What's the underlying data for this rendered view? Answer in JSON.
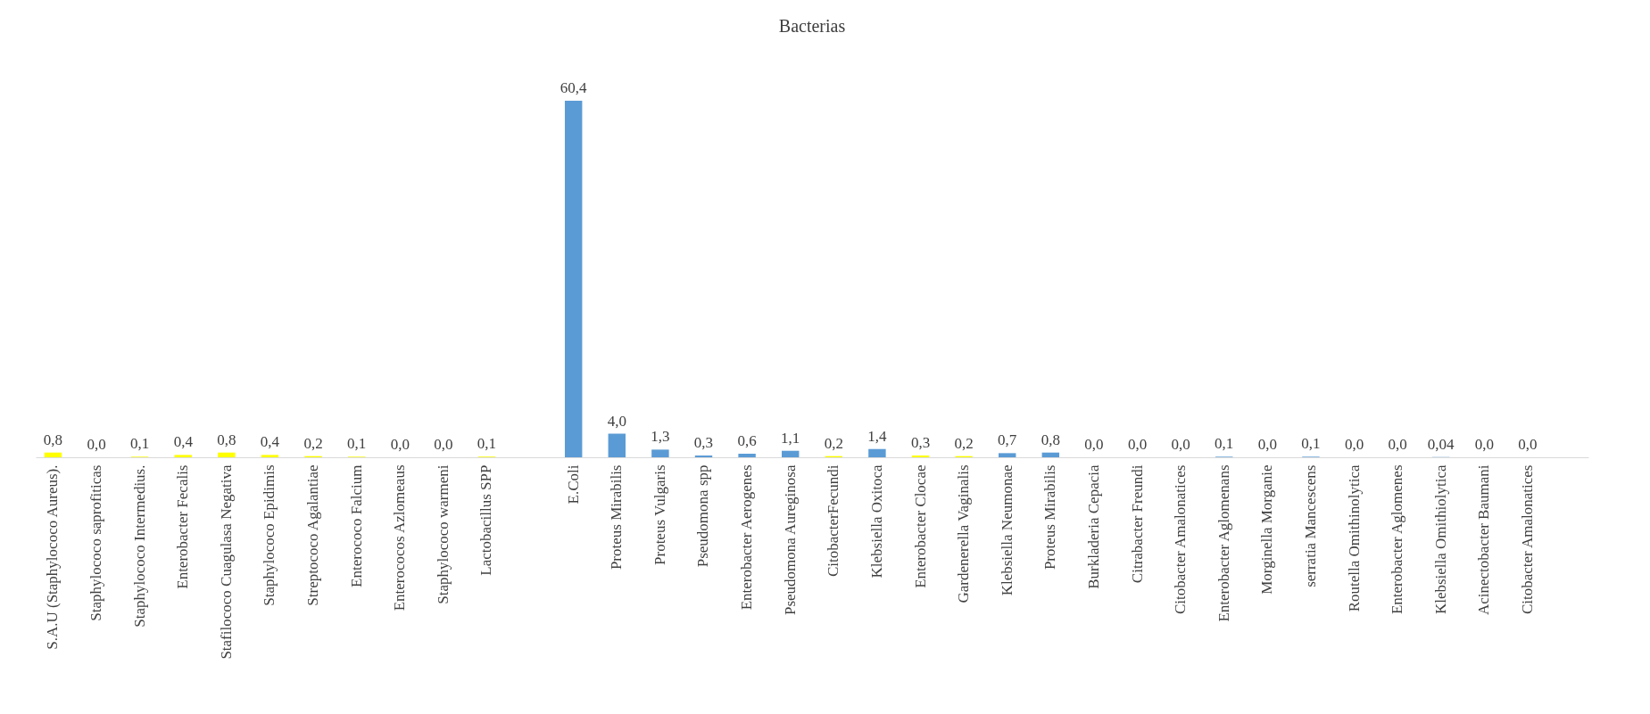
{
  "chart_data": {
    "type": "bar",
    "title": "Bacterias",
    "categories": [
      "S.A.U (Staphylococo Aureus).",
      "Staphylococo saprofiticas",
      "Staphylococo Intermedius.",
      "Enterobacter Fecalis",
      "Stafilococo Cuagulasa Negativa",
      "Staphylococo Epidimis",
      "Streptococo Agalantiae",
      "Enterococo Falcium",
      "Enterococos Azlomeaus",
      "Staphylococo warmeni",
      "Lactobacillus SPP",
      null,
      "E.Coli",
      "Proteus Mirabilis",
      "Proteus Vulgaris",
      "Pseudomona spp",
      "Enterobacter Aerogenes",
      "Pseudomona Aureginosa",
      "CitobacterFecundi",
      "Klebsiella Oxitoca",
      "Enterobacter Clocae",
      "Gardenerella Vaginalis",
      "Klebsiella Neumonae",
      "Proteus Mirabilis",
      "Burkladeria Cepacia",
      "Citrabacter Freundi",
      "Citobacter Amalonatices",
      "Enterobacter Aglomenans",
      "Morginella Morganie",
      "serratia Mancescens",
      "Routella Omithinolytica",
      "Enterobacter Aglomenes",
      "Klebsiella Omithiolytica",
      "Acinectobacter Baumani",
      "Citobacter Amalonatices",
      null
    ],
    "values": [
      0.8,
      0.0,
      0.1,
      0.4,
      0.8,
      0.4,
      0.2,
      0.1,
      0.0,
      0.0,
      0.1,
      null,
      60.4,
      4.0,
      1.3,
      0.3,
      0.6,
      1.1,
      0.2,
      1.4,
      0.3,
      0.2,
      0.7,
      0.8,
      0.0,
      0.0,
      0.0,
      0.1,
      0.0,
      0.1,
      0.0,
      0.0,
      0.04,
      0.0,
      0.0,
      null
    ],
    "value_labels": [
      "0,8",
      "0,0",
      "0,1",
      "0,4",
      "0,8",
      "0,4",
      "0,2",
      "0,1",
      "0,0",
      "0,0",
      "0,1",
      null,
      "60,4",
      "4,0",
      "1,3",
      "0,3",
      "0,6",
      "1,1",
      "0,2",
      "1,4",
      "0,3",
      "0,2",
      "0,7",
      "0,8",
      "0,0",
      "0,0",
      "0,0",
      "0,1",
      "0,0",
      "0,1",
      "0,0",
      "0,0",
      "0,04",
      "0,0",
      "0,0",
      null
    ],
    "colors": [
      "#ffff00",
      "#ffff00",
      "#ffff00",
      "#ffff00",
      "#ffff00",
      "#ffff00",
      "#ffff00",
      "#ffff00",
      "#ffff00",
      "#ffff00",
      "#ffff00",
      "#ffff00",
      "#5b9bd5",
      "#5b9bd5",
      "#5b9bd5",
      "#5b9bd5",
      "#5b9bd5",
      "#5b9bd5",
      "#ffff00",
      "#5b9bd5",
      "#ffff00",
      "#ffff00",
      "#5b9bd5",
      "#5b9bd5",
      "#5b9bd5",
      "#5b9bd5",
      "#5b9bd5",
      "#5b9bd5",
      "#5b9bd5",
      "#5b9bd5",
      "#5b9bd5",
      "#5b9bd5",
      "#5b9bd5",
      "#5b9bd5",
      "#5b9bd5",
      "#5b9bd5"
    ]
  }
}
